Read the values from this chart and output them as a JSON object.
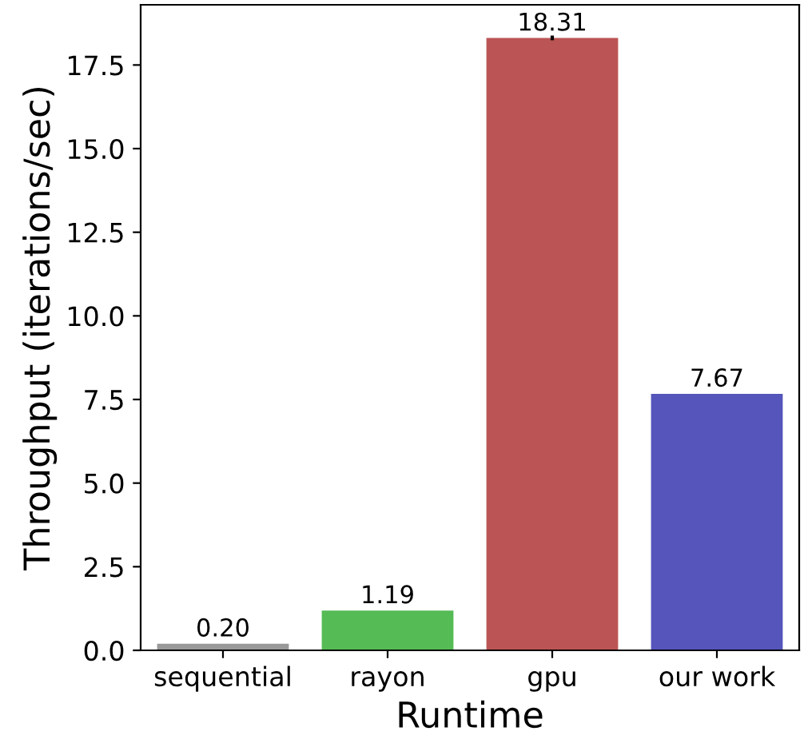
{
  "chart_data": {
    "type": "bar",
    "xlabel": "Runtime",
    "ylabel": "Throughput (iterations/sec)",
    "categories": [
      "sequential",
      "rayon",
      "gpu",
      "our work"
    ],
    "values": [
      0.2,
      1.19,
      18.31,
      7.67
    ],
    "colors": [
      "#999999",
      "#55bb55",
      "#bb5555",
      "#5555bb"
    ],
    "value_labels": [
      "0.20",
      "1.19",
      "18.31",
      "7.67"
    ],
    "errors": [
      null,
      null,
      0.07,
      null
    ],
    "ylim": [
      0,
      19.3
    ],
    "yticks": [
      {
        "value": 0,
        "label": "0.0"
      },
      2.5,
      {
        "value": 5,
        "label": "5.0"
      },
      7.5,
      {
        "value": 10,
        "label": "10.0"
      },
      12.5,
      {
        "value": 15,
        "label": "15.0"
      },
      17.5
    ],
    "grid": false,
    "legend": false
  }
}
